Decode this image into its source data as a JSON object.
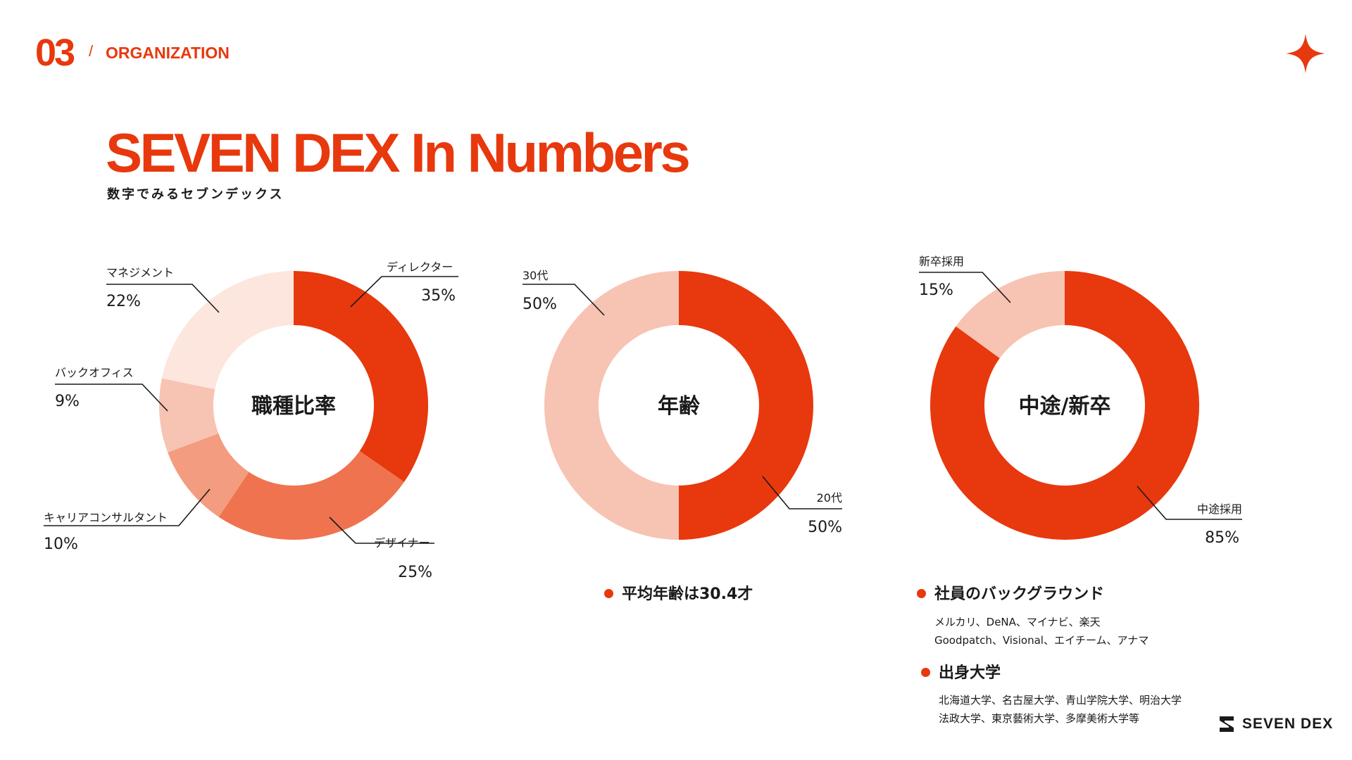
{
  "header": {
    "section_number": "03",
    "slash": "/",
    "section_label": "ORGANIZATION",
    "title": "SEVEN DEX In Numbers",
    "subtitle": "数字でみるセブンデックス"
  },
  "colors": {
    "accent": "#e8380d",
    "tone_2": "#f0734f",
    "tone_3": "#f39c80",
    "tone_4": "#f7c3b3",
    "tone_5": "#fde6de"
  },
  "icons": [
    "sparkle-icon",
    "seven-dex-logo-icon",
    "bullet-dot-icon"
  ],
  "chart_data": [
    {
      "type": "pie",
      "title": "職種比率",
      "categories": [
        "ディレクター",
        "デザイナー",
        "キャリアコンサルタント",
        "バックオフィス",
        "マネジメント"
      ],
      "values": [
        35,
        25,
        10,
        9,
        22
      ],
      "value_labels": [
        "35%",
        "25%",
        "10%",
        "9%",
        "22%"
      ],
      "colors": [
        "#e8380d",
        "#f0734f",
        "#f39c80",
        "#f7c3b3",
        "#fde6de"
      ]
    },
    {
      "type": "pie",
      "title": "年齢",
      "categories": [
        "20代",
        "30代"
      ],
      "values": [
        50,
        50
      ],
      "value_labels": [
        "50%",
        "50%"
      ],
      "colors": [
        "#e8380d",
        "#f7c3b3"
      ]
    },
    {
      "type": "pie",
      "title": "中途/新卒",
      "categories": [
        "中途採用",
        "新卒採用"
      ],
      "values": [
        85,
        15
      ],
      "value_labels": [
        "85%",
        "15%"
      ],
      "colors": [
        "#e8380d",
        "#f7c3b3"
      ]
    }
  ],
  "notes": {
    "average_age": "平均年齢は30.4才",
    "background_title": "社員のバックグラウンド",
    "background_lines": [
      "メルカリ、DeNA、マイナビ、楽天",
      "Goodpatch、Visional、エイチーム、アナマ"
    ],
    "university_title": "出身大学",
    "university_lines": [
      "北海道大学、名古屋大学、青山学院大学、明治大学",
      "法政大学、東京藝術大学、多摩美術大学等"
    ]
  },
  "footer": {
    "brand": "SEVEN DEX"
  }
}
